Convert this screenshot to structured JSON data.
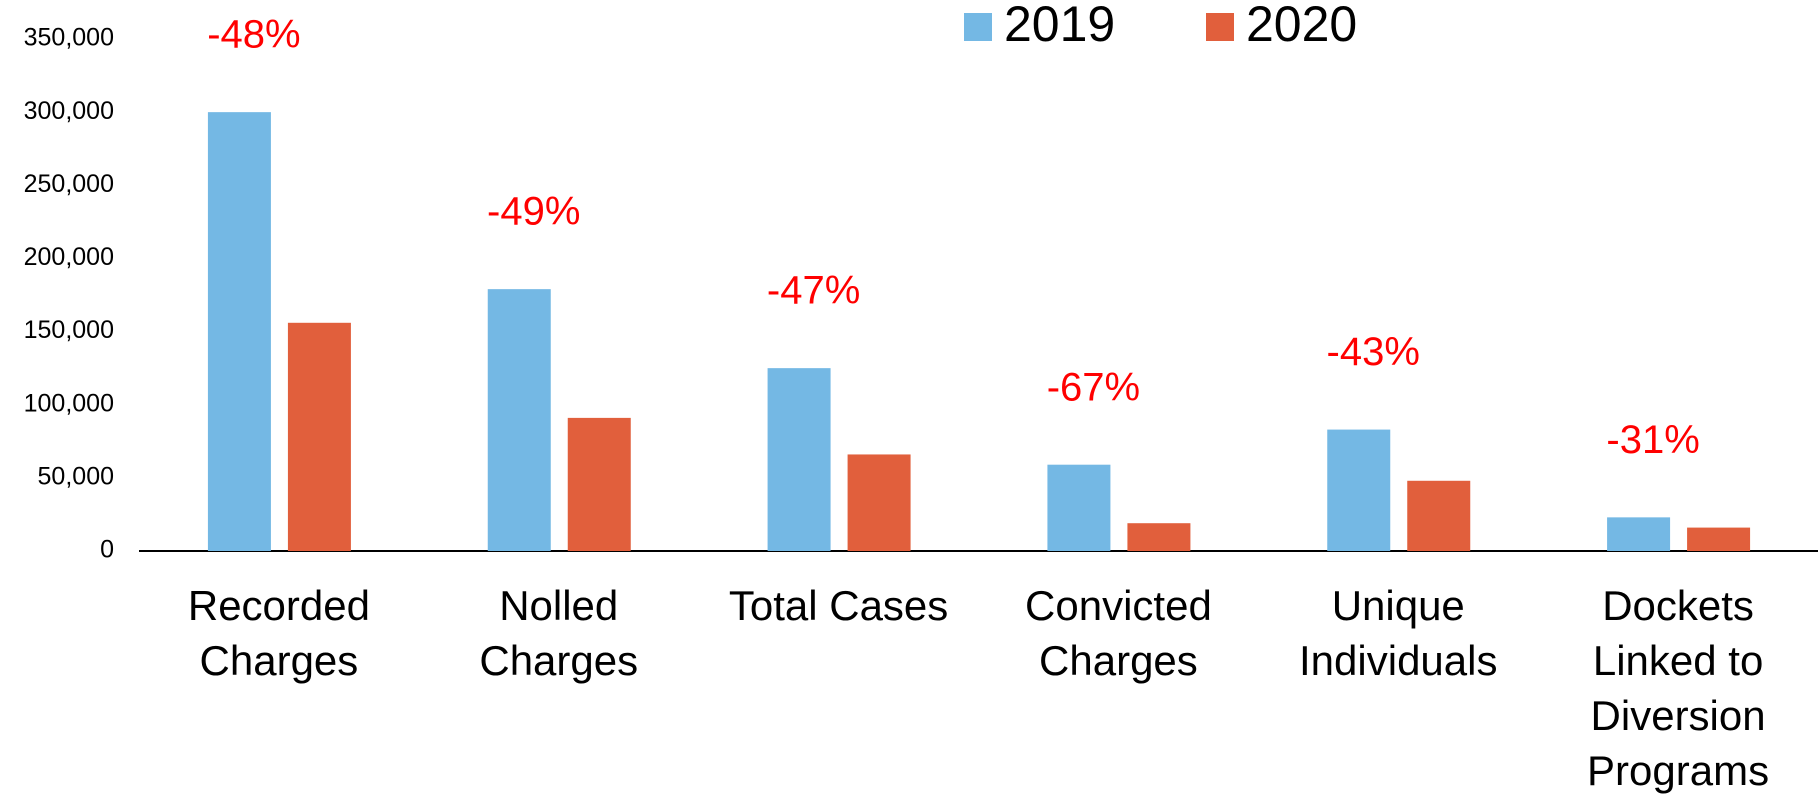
{
  "chart_data": {
    "type": "bar",
    "categories": [
      "Recorded\nCharges",
      "Nolled\nCharges",
      "Total Cases",
      "Convicted\nCharges",
      "Unique\nIndividuals",
      "Dockets\nLinked to\nDiversion\nPrograms"
    ],
    "series": [
      {
        "name": "2019",
        "color": "#74b8e4",
        "values": [
          300000,
          179000,
          125000,
          59000,
          83000,
          23000
        ]
      },
      {
        "name": "2020",
        "color": "#e15f3c",
        "values": [
          156000,
          91000,
          66000,
          19000,
          48000,
          16000
        ]
      }
    ],
    "annotations": [
      "-48%",
      "-49%",
      "-47%",
      "-67%",
      "-43%",
      "-31%"
    ],
    "ylim": [
      0,
      350000
    ],
    "yticks": [
      {
        "value": 0,
        "label": "0"
      },
      {
        "value": 50000,
        "label": "50,000"
      },
      {
        "value": 100000,
        "label": "100,000"
      },
      {
        "value": 150000,
        "label": "150,000"
      },
      {
        "value": 200000,
        "label": "200,000"
      },
      {
        "value": 250000,
        "label": "250,000"
      },
      {
        "value": 300000,
        "label": "300,000"
      },
      {
        "value": 350000,
        "label": "350,000"
      }
    ],
    "annotation_color": "#ff0000"
  }
}
